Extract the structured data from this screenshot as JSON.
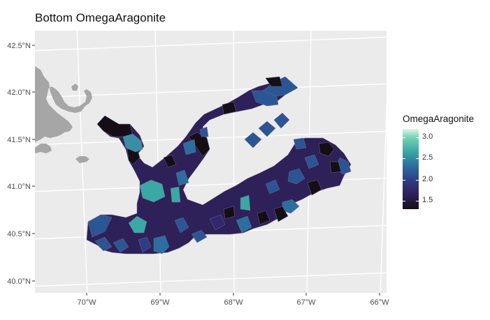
{
  "title": "Bottom OmegaAragonite",
  "legend": {
    "title": "OmegaAragonite",
    "ticks": [
      {
        "label": "3.0",
        "value": 3.0
      },
      {
        "label": "2.5",
        "value": 2.5
      },
      {
        "label": "2.0",
        "value": 2.0
      },
      {
        "label": "1.5",
        "value": 1.5
      }
    ],
    "range": [
      1.3,
      3.2
    ]
  },
  "axes": {
    "y_ticks": [
      {
        "label": "42.5°N",
        "value": 42.5
      },
      {
        "label": "42.0°N",
        "value": 42.0
      },
      {
        "label": "41.5°N",
        "value": 41.5
      },
      {
        "label": "41.0°N",
        "value": 41.0
      },
      {
        "label": "40.5°N",
        "value": 40.5
      },
      {
        "label": "40.0°N",
        "value": 40.0
      }
    ],
    "x_ticks": [
      {
        "label": "70°W",
        "value": -70
      },
      {
        "label": "69°W",
        "value": -69
      },
      {
        "label": "68°W",
        "value": -68
      },
      {
        "label": "67°W",
        "value": -67
      },
      {
        "label": "66°W",
        "value": -66
      }
    ]
  },
  "colors": {
    "panel_bg": "#ebebeb",
    "grid": "#ffffff",
    "land": "#a6a6a6",
    "low": "#150e16",
    "high": "#dff5ea"
  }
}
